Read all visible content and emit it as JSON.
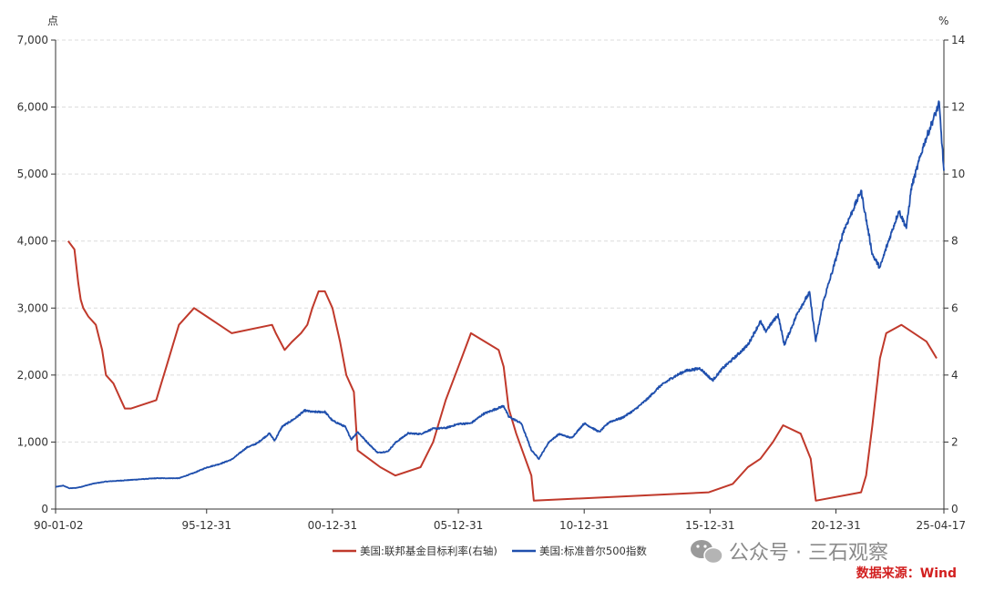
{
  "chart_data": {
    "type": "line",
    "left_unit": "点",
    "right_unit": "%",
    "x_ticks": [
      "90-01-02",
      "95-12-31",
      "00-12-31",
      "05-12-31",
      "10-12-31",
      "15-12-31",
      "20-12-31",
      "25-04-17"
    ],
    "x_tick_years": [
      1990.0,
      1996.0,
      2001.0,
      2006.0,
      2011.0,
      2016.0,
      2021.0,
      2025.29
    ],
    "xlim": [
      1990.0,
      2025.29
    ],
    "ylim_left": [
      0,
      7000
    ],
    "ylim_right": [
      0,
      14
    ],
    "y_ticks_left": [
      "0",
      "1,000",
      "2,000",
      "3,000",
      "4,000",
      "5,000",
      "6,000",
      "7,000"
    ],
    "y_ticks_right": [
      "0",
      "2",
      "4",
      "6",
      "8",
      "10",
      "12",
      "14"
    ],
    "grid": true,
    "legend_position": "bottom",
    "colors": {
      "fed": "#c0392b",
      "spx": "#1f4fad"
    },
    "series": [
      {
        "name": "美国:联邦基金目标利率(右轴)",
        "axis": "right",
        "x": [
          1990.5,
          1990.75,
          1990.9,
          1991.0,
          1991.1,
          1991.3,
          1991.6,
          1991.85,
          1992.0,
          1992.3,
          1992.6,
          1992.75,
          1993.0,
          1994.0,
          1994.2,
          1994.4,
          1994.6,
          1994.9,
          1995.5,
          1996.0,
          1996.5,
          1997.0,
          1998.6,
          1998.75,
          1999.1,
          1999.4,
          1999.75,
          2000.0,
          2000.2,
          2000.45,
          2000.7,
          2001.0,
          2001.3,
          2001.55,
          2001.85,
          2002.0,
          2002.9,
          2003.5,
          2004.5,
          2005.0,
          2005.5,
          2006.0,
          2006.5,
          2007.6,
          2007.8,
          2008.0,
          2008.3,
          2008.9,
          2009.0,
          2015.95,
          2016.9,
          2017.5,
          2018.0,
          2018.5,
          2018.9,
          2019.6,
          2020.0,
          2020.2,
          2022.0,
          2022.2,
          2022.45,
          2022.75,
          2023.0,
          2023.6,
          2024.6,
          2024.8,
          2025.0
        ],
        "values": [
          8.0,
          7.75,
          6.75,
          6.25,
          6.0,
          5.75,
          5.5,
          4.75,
          4.0,
          3.75,
          3.25,
          3.0,
          3.0,
          3.25,
          3.75,
          4.25,
          4.75,
          5.5,
          6.0,
          5.75,
          5.5,
          5.25,
          5.5,
          5.25,
          4.75,
          5.0,
          5.25,
          5.5,
          6.0,
          6.5,
          6.5,
          6.0,
          5.0,
          4.0,
          3.5,
          1.75,
          1.25,
          1.0,
          1.25,
          2.0,
          3.25,
          4.25,
          5.25,
          4.75,
          4.25,
          3.0,
          2.25,
          1.0,
          0.25,
          0.5,
          0.75,
          1.25,
          1.5,
          2.0,
          2.5,
          2.25,
          1.5,
          0.25,
          0.5,
          1.0,
          2.5,
          4.5,
          5.25,
          5.5,
          5.0,
          4.75,
          4.5
        ]
      },
      {
        "name": "美国:标准普尔500指数",
        "axis": "left",
        "x": [
          1990.0,
          1990.3,
          1990.55,
          1990.8,
          1991.0,
          1991.5,
          1992.0,
          1993.0,
          1994.0,
          1994.9,
          1995.5,
          1996.0,
          1996.5,
          1997.0,
          1997.6,
          1998.0,
          1998.5,
          1998.7,
          1999.0,
          1999.5,
          1999.9,
          2000.2,
          2000.7,
          2001.0,
          2001.5,
          2001.75,
          2002.0,
          2002.5,
          2002.8,
          2003.2,
          2003.5,
          2004.0,
          2004.5,
          2005.0,
          2005.5,
          2006.0,
          2006.5,
          2007.0,
          2007.8,
          2008.0,
          2008.5,
          2008.9,
          2009.2,
          2009.6,
          2010.0,
          2010.5,
          2011.0,
          2011.6,
          2012.0,
          2012.5,
          2013.0,
          2013.5,
          2014.0,
          2014.5,
          2015.0,
          2015.6,
          2016.1,
          2016.5,
          2017.0,
          2017.5,
          2018.0,
          2018.2,
          2018.7,
          2018.95,
          2019.5,
          2019.95,
          2020.2,
          2020.5,
          2020.9,
          2021.3,
          2021.6,
          2022.0,
          2022.45,
          2022.75,
          2023.0,
          2023.5,
          2023.8,
          2024.0,
          2024.5,
          2025.1,
          2025.29
        ],
        "values": [
          330,
          350,
          310,
          315,
          330,
          380,
          410,
          435,
          460,
          460,
          540,
          620,
          670,
          740,
          920,
          980,
          1130,
          1020,
          1230,
          1350,
          1470,
          1450,
          1450,
          1320,
          1230,
          1040,
          1150,
          950,
          840,
          860,
          990,
          1130,
          1120,
          1200,
          1210,
          1270,
          1280,
          1420,
          1540,
          1380,
          1280,
          880,
          750,
          1000,
          1120,
          1060,
          1280,
          1150,
          1300,
          1360,
          1480,
          1640,
          1830,
          1960,
          2060,
          2100,
          1920,
          2100,
          2270,
          2450,
          2800,
          2650,
          2900,
          2450,
          2950,
          3230,
          2500,
          3100,
          3600,
          4150,
          4400,
          4750,
          3800,
          3600,
          3900,
          4450,
          4200,
          4800,
          5450,
          6050,
          5050
        ]
      }
    ]
  },
  "legend": [
    {
      "label": "美国:联邦基金目标利率(右轴)"
    },
    {
      "label": "美国:标准普尔500指数"
    }
  ],
  "watermark": {
    "icon": "wechat-icon",
    "text": "公众号 · 三石观察"
  },
  "source": "数据来源：Wind"
}
